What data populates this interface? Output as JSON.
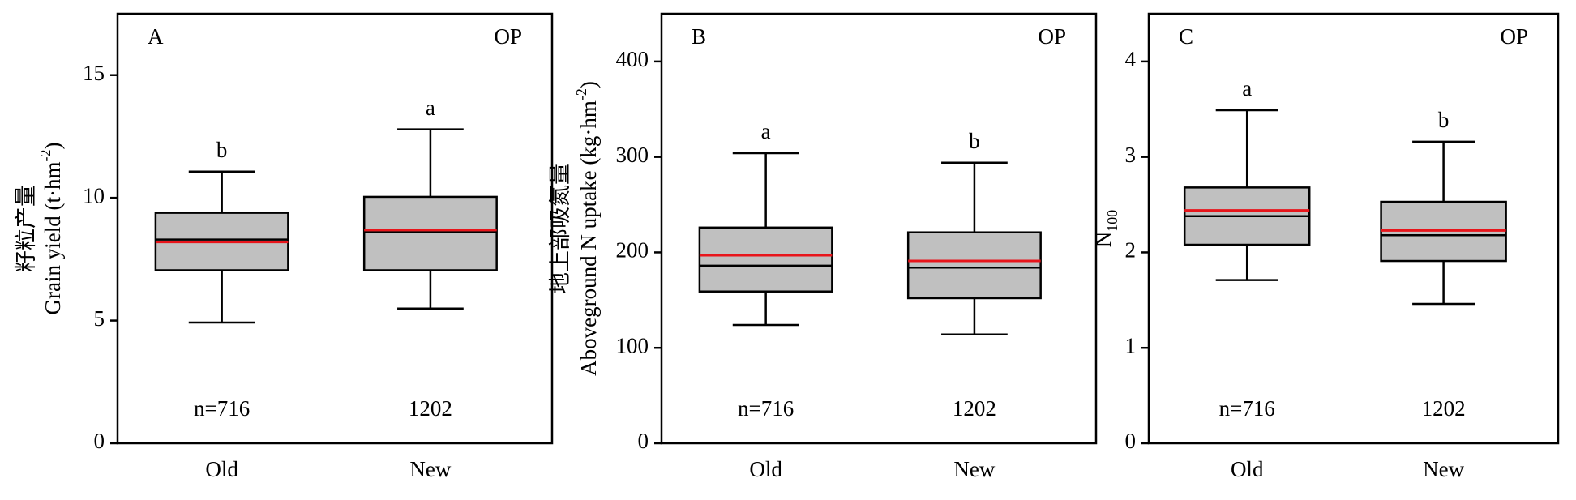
{
  "chart_data": [
    {
      "type": "box",
      "panel_label": "A",
      "corner_label": "OP",
      "y_label_lines": [
        [
          {
            "text": "籽粒产量"
          }
        ],
        [
          {
            "text": "Grain yield (t·hm"
          },
          {
            "text": "-2",
            "sup": true
          },
          {
            "text": ")"
          }
        ]
      ],
      "categories": [
        "Old",
        "New"
      ],
      "boxes": [
        {
          "whisker_low": 4.92,
          "q1": 7.05,
          "median": 8.3,
          "mean": 8.2,
          "q3": 9.39,
          "whisker_high": 11.07
        },
        {
          "whisker_low": 5.49,
          "q1": 7.05,
          "median": 8.6,
          "mean": 8.69,
          "q3": 10.04,
          "whisker_high": 12.79
        }
      ],
      "sig_letters": [
        "b",
        "a"
      ],
      "n_labels": [
        "n=716",
        "1202"
      ],
      "box_color": "#c0c0c0",
      "median_color": "#000000",
      "mean_color": "#e8151b",
      "ylim": [
        0,
        17.5
      ],
      "yticks": [
        0,
        5,
        10,
        15
      ]
    },
    {
      "type": "box",
      "panel_label": "B",
      "corner_label": "OP",
      "y_label_lines": [
        [
          {
            "text": "地上部吸氮量"
          }
        ],
        [
          {
            "text": "Aboveground N uptake (kg·hm"
          },
          {
            "text": "-2",
            "sup": true
          },
          {
            "text": ")"
          }
        ]
      ],
      "categories": [
        "Old",
        "New"
      ],
      "boxes": [
        {
          "whisker_low": 124,
          "q1": 159,
          "median": 186,
          "mean": 197,
          "q3": 226,
          "whisker_high": 304
        },
        {
          "whisker_low": 114,
          "q1": 152,
          "median": 184,
          "mean": 191,
          "q3": 221,
          "whisker_high": 294
        }
      ],
      "sig_letters": [
        "a",
        "b"
      ],
      "n_labels": [
        "n=716",
        "1202"
      ],
      "box_color": "#c0c0c0",
      "median_color": "#000000",
      "mean_color": "#e8151b",
      "ylim": [
        0,
        450
      ],
      "yticks": [
        0,
        100,
        200,
        300,
        400
      ]
    },
    {
      "type": "box",
      "panel_label": "C",
      "corner_label": "OP",
      "y_label_lines": [
        [
          {
            "text": "N"
          },
          {
            "text": "100",
            "sub": true
          }
        ]
      ],
      "categories": [
        "Old",
        "New"
      ],
      "boxes": [
        {
          "whisker_low": 1.71,
          "q1": 2.08,
          "median": 2.38,
          "mean": 2.44,
          "q3": 2.68,
          "whisker_high": 3.49
        },
        {
          "whisker_low": 1.46,
          "q1": 1.91,
          "median": 2.18,
          "mean": 2.23,
          "q3": 2.53,
          "whisker_high": 3.16
        }
      ],
      "sig_letters": [
        "a",
        "b"
      ],
      "n_labels": [
        "n=716",
        "1202"
      ],
      "box_color": "#c0c0c0",
      "median_color": "#000000",
      "mean_color": "#e8151b",
      "ylim": [
        0,
        4.5
      ],
      "yticks": [
        0,
        1,
        2,
        3,
        4
      ]
    }
  ]
}
